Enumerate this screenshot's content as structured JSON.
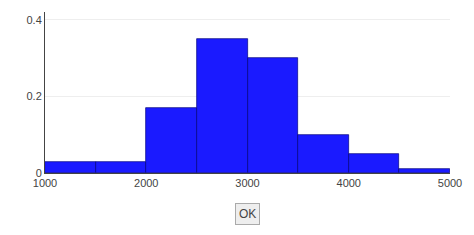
{
  "chart_data": {
    "type": "histogram",
    "bins": [
      1000,
      1500,
      2000,
      2500,
      3000,
      3500,
      4000,
      4500,
      5000
    ],
    "values": [
      0.03,
      0.03,
      0.17,
      0.35,
      0.3,
      0.1,
      0.05,
      0.01
    ],
    "color": "#1a1aff",
    "xlim": [
      1000,
      5000
    ],
    "ylim": [
      0,
      0.42
    ],
    "xticks": [
      1000,
      2000,
      3000,
      4000,
      5000
    ],
    "yticks": [
      0,
      0.2,
      0.4
    ],
    "grid": true,
    "annotations": [
      "OK"
    ]
  }
}
